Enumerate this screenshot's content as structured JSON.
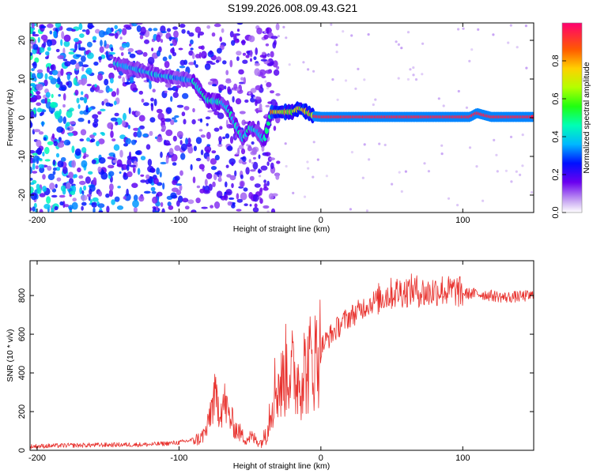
{
  "title": "S199.2026.008.09.43.G21",
  "chart_data": [
    {
      "type": "heatmap",
      "name": "spectrogram",
      "xlabel": "Height of straight line (km)",
      "ylabel": "Frequency (Hz)",
      "xlim": [
        -205,
        150
      ],
      "ylim": [
        -24.5,
        24.5
      ],
      "xticks": [
        -200,
        -100,
        0,
        100
      ],
      "yticks": [
        -20,
        -10,
        0,
        10,
        20
      ],
      "ridge": {
        "description": "dominant frequency track (Hz) vs height",
        "x": [
          -145,
          -130,
          -115,
          -100,
          -90,
          -80,
          -70,
          -65,
          -60,
          -55,
          -50,
          -45,
          -40,
          -35,
          -30,
          -25,
          -20,
          -15,
          -10,
          -5,
          0,
          20,
          40,
          60,
          80,
          100,
          105,
          110,
          120,
          150
        ],
        "y": [
          14,
          12.5,
          11,
          10.2,
          9.5,
          4.5,
          4,
          2,
          -2,
          -5.5,
          -2.5,
          -3.5,
          -6,
          1.5,
          1.5,
          1.5,
          1.5,
          2.5,
          1.5,
          0.4,
          0.2,
          0.2,
          0.2,
          0.2,
          0.2,
          0.2,
          0.2,
          1.2,
          0.2,
          0.2
        ]
      },
      "colorbar": {
        "label": "Normalized spectral amplitude",
        "ticks": [
          "0.0",
          "0.2",
          "0.4",
          "0.6",
          "0.8"
        ],
        "tick_values": [
          0,
          0.2,
          0.4,
          0.6,
          0.8
        ],
        "range": [
          0,
          1
        ]
      }
    },
    {
      "type": "line",
      "name": "snr",
      "xlabel": "Height of straight line (km)",
      "ylabel": "SNR (10 * v/v)",
      "xlim": [
        -205,
        150
      ],
      "ylim": [
        0,
        980
      ],
      "xticks": [
        -200,
        -100,
        0,
        100
      ],
      "yticks": [
        0,
        200,
        400,
        600,
        800
      ],
      "color": "#e8302c",
      "series": [
        {
          "name": "SNR",
          "x": [
            -205,
            -180,
            -150,
            -120,
            -100,
            -90,
            -85,
            -80,
            -78,
            -75,
            -72,
            -70,
            -68,
            -65,
            -62,
            -60,
            -57,
            -55,
            -52,
            -50,
            -47,
            -45,
            -42,
            -40,
            -38,
            -36,
            -34,
            -32,
            -30,
            -28,
            -26,
            -24,
            -22,
            -20,
            -18,
            -16,
            -14,
            -12,
            -10,
            -8,
            -6,
            -4,
            -2,
            0,
            5,
            10,
            15,
            20,
            25,
            30,
            35,
            40,
            45,
            50,
            55,
            60,
            65,
            70,
            75,
            80,
            85,
            90,
            95,
            100,
            110,
            120,
            130,
            140,
            150
          ],
          "y": [
            20,
            25,
            28,
            30,
            40,
            55,
            60,
            110,
            200,
            270,
            230,
            220,
            250,
            180,
            140,
            110,
            90,
            70,
            60,
            70,
            60,
            50,
            40,
            70,
            120,
            200,
            280,
            330,
            340,
            330,
            380,
            430,
            420,
            400,
            370,
            370,
            380,
            430,
            400,
            450,
            470,
            470,
            520,
            530,
            580,
            620,
            660,
            690,
            710,
            740,
            760,
            780,
            800,
            810,
            820,
            820,
            830,
            820,
            810,
            825,
            830,
            820,
            825,
            810,
            810,
            800,
            790,
            795,
            800
          ]
        }
      ]
    }
  ]
}
